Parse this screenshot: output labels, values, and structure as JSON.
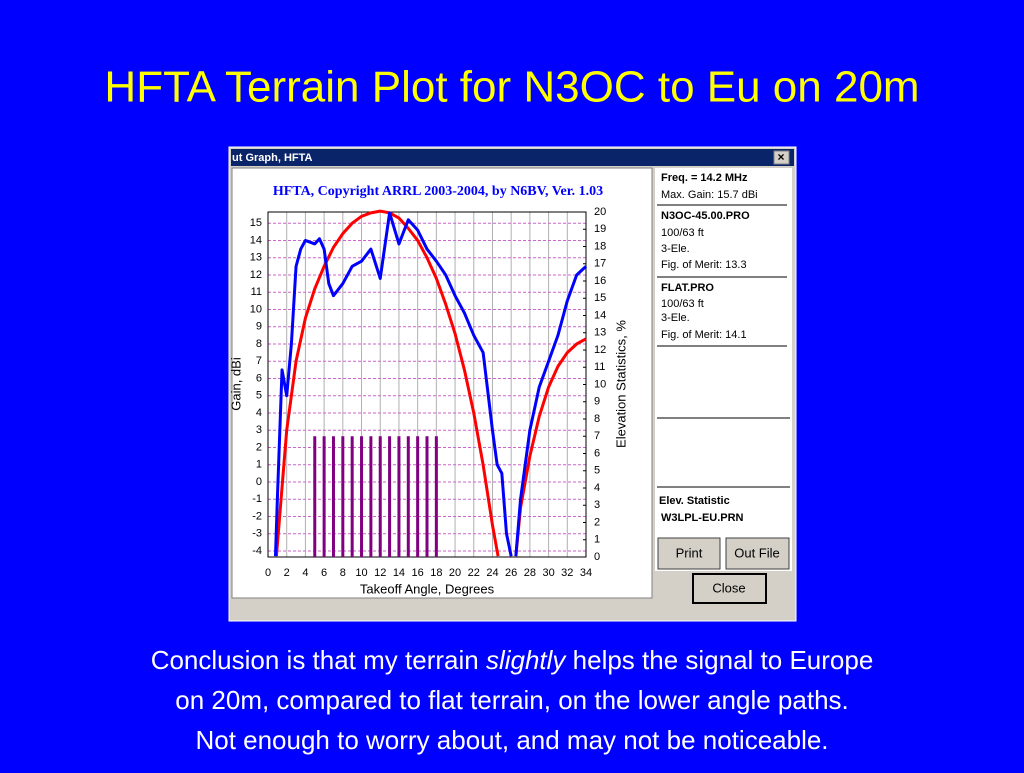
{
  "slide_title": "HFTA Terrain Plot for N3OC to Eu on 20m",
  "window_title": "ut Graph, HFTA",
  "close_icon": "×",
  "panel": {
    "freq": "Freq. = 14.2 MHz",
    "max_gain": "Max. Gain: 15.7 dBi",
    "entries": [
      {
        "height": "100/63 ft",
        "antenna": "3-Ele.",
        "merit": "Fig. of Merit:  13.3"
      },
      {
        "height": "100/63 ft",
        "antenna": "3-Ele.",
        "merit": "Fig. of Merit:  14.1"
      }
    ],
    "elev_heading": "Elev. Statistic",
    "buttons": [
      "Print",
      "Out File",
      "Close"
    ]
  },
  "conclusion": {
    "line1_start": "Conclusion is that my terrain ",
    "line1_italic": "slightly",
    "line1_end": " helps the signal to Europe",
    "line2": "on 20m, compared to flat terrain, on the lower angle paths.",
    "line3": "Not enough to worry about, and may not be noticeable."
  },
  "chart_data": {
    "type": "line",
    "title": "HFTA, Copyright ARRL 2003-2004, by N6BV, Ver. 1.03",
    "x_label": "Takeoff Angle, Degrees",
    "y_label": "Gain, dBi",
    "y2_label": "Elevation Statistics, %",
    "xlim": [
      0,
      34
    ],
    "xticks": [
      0,
      2,
      4,
      6,
      8,
      10,
      12,
      14,
      16,
      18,
      20,
      22,
      24,
      26,
      28,
      30,
      32,
      34
    ],
    "ylim": [
      -4.35,
      15.65
    ],
    "yticks": [
      -4,
      -3,
      -2,
      -1,
      0,
      1,
      2,
      3,
      4,
      5,
      6,
      7,
      8,
      9,
      10,
      11,
      12,
      13,
      14,
      15
    ],
    "y2lim": [
      0,
      20
    ],
    "y2ticks": [
      0,
      1,
      2,
      3,
      4,
      5,
      6,
      7,
      8,
      9,
      10,
      11,
      12,
      13,
      14,
      15,
      16,
      17,
      18,
      19,
      20
    ],
    "grid": true,
    "series": [
      {
        "name": "N3OC-45.00.PRO",
        "color": "#0000ff",
        "type": "line",
        "x": [
          0.8,
          1,
          1.5,
          2,
          2.5,
          3,
          3.5,
          4,
          5,
          5.5,
          6,
          6.5,
          7,
          8,
          9,
          10,
          11,
          12,
          13,
          14,
          15,
          16,
          17,
          18,
          19,
          20,
          21,
          22,
          23,
          24,
          24.5,
          25,
          25.5,
          26,
          26.2,
          26.5,
          27,
          28,
          29,
          30,
          31,
          32,
          33,
          34
        ],
        "values": [
          -4.3,
          -1,
          6.5,
          5,
          8,
          12.5,
          13.5,
          14,
          13.8,
          14.1,
          13.5,
          11.5,
          10.8,
          11.5,
          12.5,
          12.8,
          13.5,
          11.8,
          15.6,
          13.8,
          15.2,
          14.6,
          13.5,
          12.8,
          12,
          10.8,
          9.8,
          8.5,
          7.5,
          3,
          1,
          0.5,
          -3,
          -4.3,
          null,
          -4.3,
          -1,
          3,
          5.5,
          7,
          8.5,
          10.5,
          12,
          12.5
        ]
      },
      {
        "name": "FLAT.PRO",
        "color": "#ff0000",
        "type": "line",
        "x": [
          0.9,
          2,
          3,
          4,
          5,
          6,
          7,
          8,
          9,
          10,
          11,
          12,
          13,
          14,
          15,
          16,
          17,
          18,
          19,
          20,
          21,
          22,
          23,
          24,
          24.6,
          25.5,
          26.5,
          27,
          28,
          29,
          30,
          31,
          32,
          33,
          34
        ],
        "values": [
          -4.3,
          3,
          7,
          9.5,
          11.2,
          12.5,
          13.6,
          14.4,
          15,
          15.4,
          15.6,
          15.7,
          15.6,
          15.3,
          14.7,
          14,
          13,
          11.8,
          10.3,
          8.6,
          6.5,
          4,
          1,
          -2.5,
          -4.3,
          null,
          -4.3,
          -1.5,
          1.5,
          3.8,
          5.5,
          6.7,
          7.5,
          8,
          8.3
        ]
      },
      {
        "name": "W3LPL-EU.PRN",
        "color": "#800080",
        "type": "bar",
        "axis": "y2",
        "x": [
          5,
          6,
          7,
          8,
          9,
          10,
          11,
          12,
          13,
          14,
          15,
          16,
          17,
          18
        ],
        "values": [
          7,
          7,
          7,
          7,
          7,
          7,
          7,
          7,
          7,
          7,
          7,
          7,
          7,
          7
        ]
      }
    ]
  }
}
